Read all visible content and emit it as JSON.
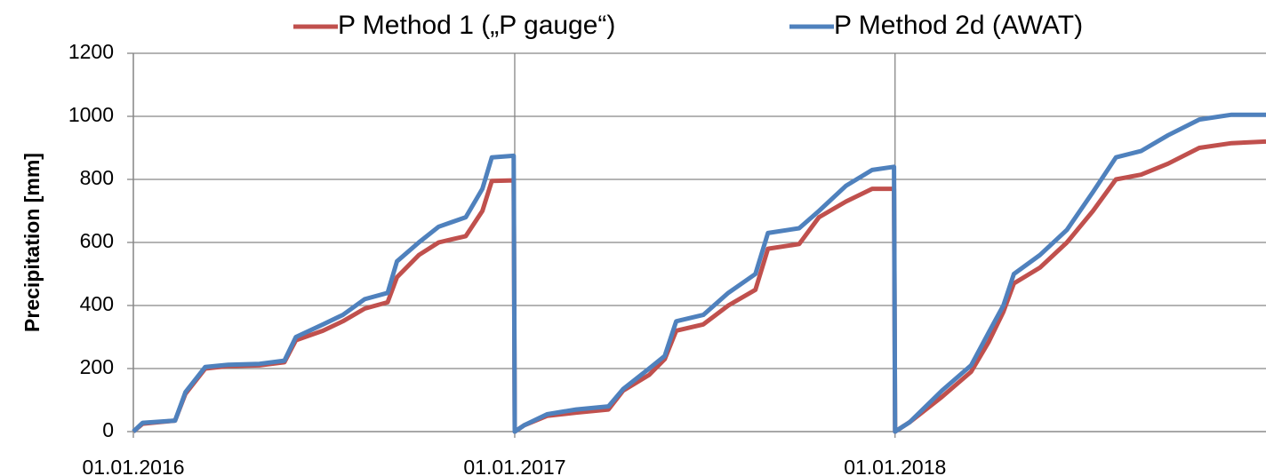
{
  "chart_data": {
    "type": "line",
    "y_label": "Precipitation [mm]",
    "x": [
      "2016-01-01",
      "2016-01-10",
      "2016-02-10",
      "2016-02-20",
      "2016-03-10",
      "2016-04-01",
      "2016-05-01",
      "2016-05-25",
      "2016-06-05",
      "2016-07-01",
      "2016-07-20",
      "2016-08-10",
      "2016-09-01",
      "2016-09-10",
      "2016-10-01",
      "2016-10-20",
      "2016-11-15",
      "2016-12-01",
      "2016-12-10",
      "2016-12-31",
      "2017-01-01",
      "2017-01-10",
      "2017-02-01",
      "2017-03-01",
      "2017-04-01",
      "2017-04-15",
      "2017-05-10",
      "2017-05-25",
      "2017-06-05",
      "2017-07-01",
      "2017-07-25",
      "2017-08-20",
      "2017-09-01",
      "2017-10-01",
      "2017-10-20",
      "2017-11-15",
      "2017-12-10",
      "2017-12-31",
      "2018-01-01",
      "2018-01-15",
      "2018-02-15",
      "2018-03-15",
      "2018-04-01",
      "2018-04-15",
      "2018-04-25",
      "2018-05-20",
      "2018-06-15",
      "2018-07-10",
      "2018-08-01",
      "2018-08-25",
      "2018-09-20",
      "2018-10-20",
      "2018-11-20",
      "2018-12-23"
    ],
    "series": [
      {
        "name": "P Method 1 („P gauge“)",
        "color": "#c0504d",
        "values": [
          0,
          25,
          35,
          120,
          200,
          208,
          210,
          220,
          290,
          320,
          350,
          390,
          410,
          490,
          560,
          600,
          620,
          700,
          795,
          797,
          0,
          20,
          50,
          60,
          70,
          130,
          180,
          230,
          320,
          340,
          400,
          450,
          580,
          595,
          680,
          730,
          770,
          770,
          0,
          30,
          110,
          190,
          285,
          380,
          470,
          520,
          600,
          700,
          800,
          815,
          850,
          900,
          915,
          920
        ]
      },
      {
        "name": "P Method 2d (AWAT)",
        "color": "#4f81bd",
        "values": [
          0,
          28,
          35,
          125,
          205,
          212,
          215,
          225,
          300,
          340,
          370,
          420,
          440,
          540,
          600,
          650,
          680,
          770,
          870,
          875,
          0,
          20,
          55,
          70,
          80,
          135,
          200,
          240,
          350,
          370,
          440,
          500,
          630,
          645,
          700,
          780,
          830,
          840,
          0,
          30,
          130,
          210,
          315,
          400,
          500,
          560,
          640,
          760,
          870,
          890,
          940,
          990,
          1005,
          1005
        ]
      }
    ],
    "xlim": [
      "2016-01-01",
      "2018-12-23"
    ],
    "xticks": [
      {
        "value": "2016-01-01",
        "label": "01.01.2016"
      },
      {
        "value": "2017-01-01",
        "label": "01.01.2017"
      },
      {
        "value": "2018-01-01",
        "label": "01.01.2018"
      }
    ],
    "ylim": [
      0,
      1200
    ],
    "yticks": [
      0,
      200,
      400,
      600,
      800,
      1000,
      1200
    ],
    "grid": true
  }
}
